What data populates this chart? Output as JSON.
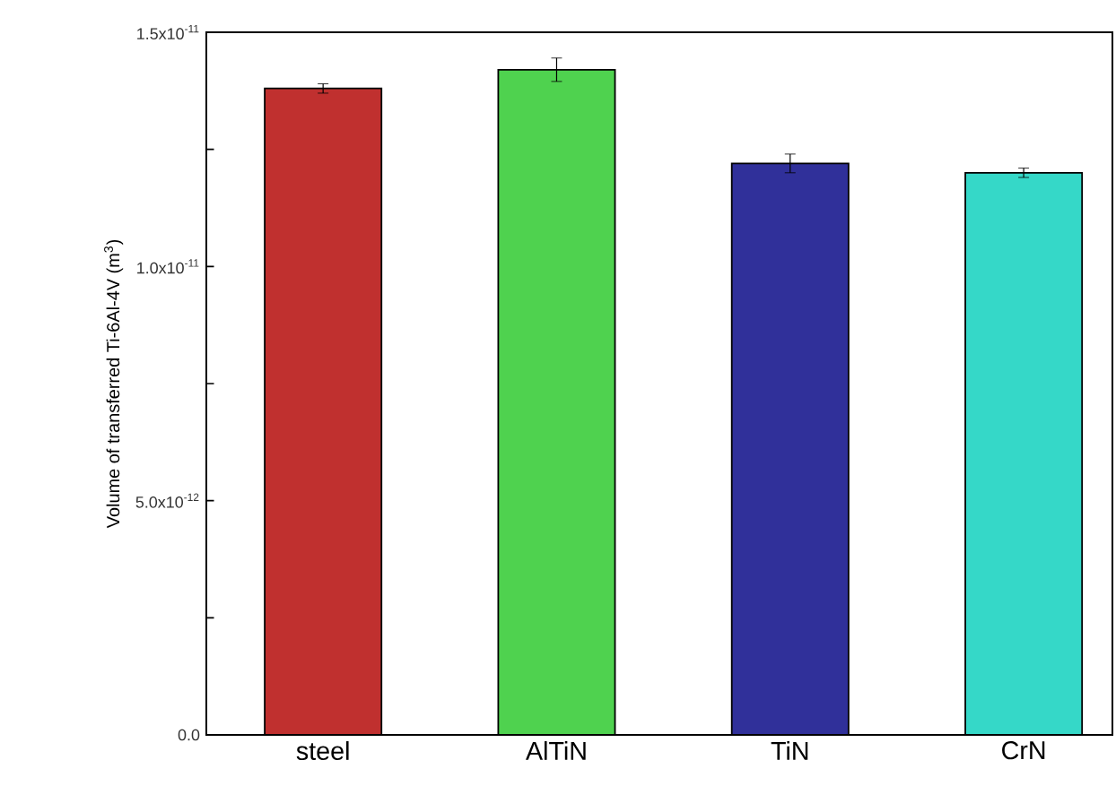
{
  "chart_data": {
    "type": "bar",
    "ylabel": "Volume of transferred Ti-6Al-4V (m$^{3}$)",
    "categories": [
      "steel",
      "AlTiN",
      "TiN",
      "CrN"
    ],
    "values": [
      1.38e-11,
      1.42e-11,
      1.22e-11,
      1.2e-11
    ],
    "errors": [
      1e-13,
      2.5e-13,
      2e-13,
      1e-13
    ],
    "colors": [
      "#c0302f",
      "#4fd24f",
      "#30309a",
      "#35d8c8"
    ],
    "ylim": [
      0,
      1.5e-11
    ],
    "yticks": [
      {
        "value": 0,
        "label": "0.0"
      },
      {
        "value": 2.5e-12,
        "label": null
      },
      {
        "value": 5e-12,
        "label": "5.0x10$^{-12}$"
      },
      {
        "value": 7.5e-12,
        "label": null
      },
      {
        "value": 1e-11,
        "label": "1.0x10$^{-11}$"
      },
      {
        "value": 1.25e-11,
        "label": null
      },
      {
        "value": 1.5e-11,
        "label": "1.5x10$^{-11}$"
      }
    ],
    "grid": false,
    "legend": false
  }
}
